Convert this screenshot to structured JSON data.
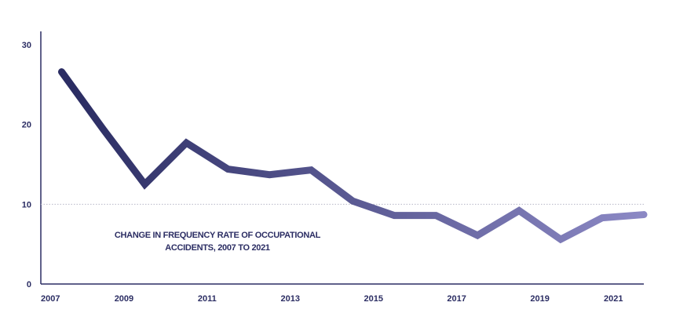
{
  "chart_data": {
    "type": "line",
    "title": "",
    "xlabel": "",
    "ylabel": "",
    "annotation": [
      "CHANGE IN FREQUENCY RATE OF OCCUPATIONAL",
      "ACCIDENTS, 2007 TO 2021"
    ],
    "x": [
      2007.5,
      2008.5,
      2009.5,
      2010.5,
      2011.5,
      2012.5,
      2013.5,
      2014.5,
      2015.5,
      2016.5,
      2017.5,
      2018.5,
      2019.5,
      2020.5,
      2021.5
    ],
    "y": [
      26.6,
      19.4,
      12.5,
      17.7,
      14.4,
      13.7,
      14.3,
      10.4,
      8.6,
      8.6,
      6.1,
      9.2,
      5.6,
      8.3,
      8.7
    ],
    "xticks": [
      "2007",
      "2009",
      "2011",
      "2013",
      "2015",
      "2017",
      "2019",
      "2021"
    ],
    "xtick_values": [
      2007,
      2009,
      2011,
      2013,
      2015,
      2017,
      2019,
      2021
    ],
    "yticks": [
      "0",
      "10",
      "20",
      "30"
    ],
    "ytick_values": [
      0,
      10,
      20,
      30
    ],
    "xlim": [
      2007,
      2021.5
    ],
    "ylim": [
      0,
      30
    ],
    "reference_line": 10,
    "grid": false,
    "colors": {
      "line_start": "#2b2d63",
      "line_end": "#8b88c4",
      "axis": "#2b2d63",
      "reference": "#b8b8c8"
    }
  }
}
